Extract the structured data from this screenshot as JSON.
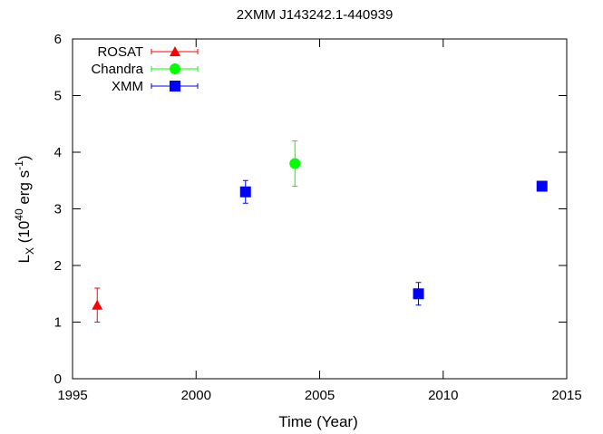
{
  "chart_data": {
    "type": "scatter",
    "title": "2XMM J143242.1-440939",
    "xlabel": "Time (Year)",
    "ylabel": {
      "base": "L",
      "sub": "X",
      "open": " (10",
      "exp": "40",
      "mid": " erg s",
      "exp2": "-1",
      "close": ")"
    },
    "xlim": [
      1995,
      2015
    ],
    "ylim": [
      0,
      6
    ],
    "xticks": [
      1995,
      2000,
      2005,
      2010,
      2015
    ],
    "yticks": [
      0,
      1,
      2,
      3,
      4,
      5,
      6
    ],
    "grid": false,
    "legend_position": "top-left",
    "series": [
      {
        "name": "ROSAT",
        "marker": "triangle",
        "color": "#ff0000",
        "points": [
          {
            "x": 1996.0,
            "y": 1.3,
            "ylo": 1.0,
            "yhi": 1.6
          }
        ]
      },
      {
        "name": "Chandra",
        "marker": "circle",
        "color": "#00ff00",
        "points": [
          {
            "x": 2004.0,
            "y": 3.8,
            "ylo": 3.4,
            "yhi": 4.2
          }
        ]
      },
      {
        "name": "XMM",
        "marker": "square",
        "color": "#0000ff",
        "points": [
          {
            "x": 2002.0,
            "y": 3.3,
            "ylo": 3.1,
            "yhi": 3.5
          },
          {
            "x": 2009.0,
            "y": 1.5,
            "ylo": 1.3,
            "yhi": 1.7
          },
          {
            "x": 2014.0,
            "y": 3.4,
            "ylo": 3.35,
            "yhi": 3.45
          }
        ]
      }
    ]
  }
}
